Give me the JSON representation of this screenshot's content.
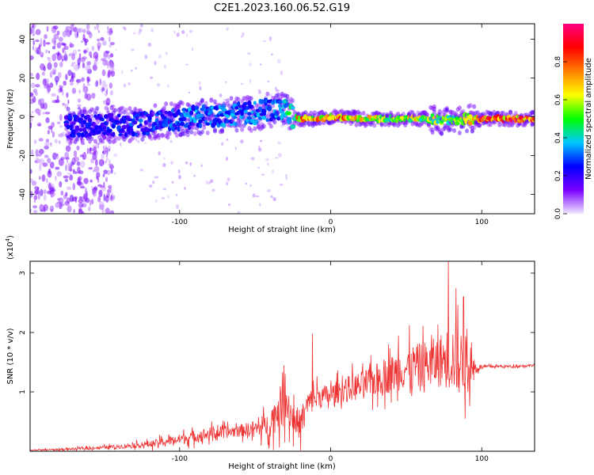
{
  "title": "C2E1.2023.160.06.52.G19",
  "chart_data": [
    {
      "type": "heatmap",
      "xlabel": "Height of straight line (km)",
      "ylabel": "Frequency (Hz)",
      "xlim": [
        -199,
        135
      ],
      "ylim": [
        -50,
        48
      ],
      "x_ticks": [
        -100,
        0,
        100
      ],
      "x_tick_labels": [
        "-100",
        "0",
        "100"
      ],
      "y_ticks": [
        -40,
        -20,
        0,
        20,
        40
      ],
      "y_tick_labels": [
        "-40",
        "-20",
        "0",
        "20",
        "40"
      ],
      "colorbar": {
        "label": "Normalized spectral amplitude",
        "range": [
          0.0,
          1.0
        ],
        "ticks": [
          0.0,
          0.2,
          0.4,
          0.6,
          0.8
        ],
        "tick_labels": [
          "0.0",
          "0.2",
          "0.4",
          "0.6",
          "0.8"
        ],
        "colormap": [
          "#f0e8ff",
          "#7a00ff",
          "#0000ff",
          "#00c8ff",
          "#00ff00",
          "#ffff00",
          "#ff8000",
          "#ff0000",
          "#ff0080"
        ]
      },
      "ridge": {
        "x": [
          -170,
          -150,
          -130,
          -110,
          -90,
          -70,
          -50,
          -40,
          -30,
          -25,
          -20,
          -10,
          0,
          20,
          40,
          60,
          80,
          90,
          100,
          120,
          135
        ],
        "y": [
          -5,
          -4,
          -4,
          -2,
          0,
          1,
          2,
          4,
          3,
          0,
          -1,
          -1,
          0,
          -1,
          -1,
          -1,
          -2,
          -1,
          -1,
          -1,
          -1
        ],
        "intensity": [
          0.25,
          0.25,
          0.3,
          0.3,
          0.35,
          0.35,
          0.35,
          0.35,
          0.4,
          0.5,
          0.85,
          0.8,
          0.85,
          0.75,
          0.65,
          0.65,
          0.55,
          0.65,
          0.9,
          0.9,
          0.85
        ]
      },
      "grid": false,
      "legend": "none"
    },
    {
      "type": "line",
      "xlabel": "Height of straight line (km)",
      "ylabel": "SNR (10 * v/v)",
      "y_scale_label": "(x10",
      "y_scale_exp": "4",
      "y_scale_close": ")",
      "xlim": [
        -199,
        135
      ],
      "ylim": [
        0,
        3.2
      ],
      "x_ticks": [
        -100,
        0,
        100
      ],
      "x_tick_labels": [
        "-100",
        "0",
        "100"
      ],
      "y_ticks": [
        1,
        2,
        3
      ],
      "y_tick_labels": [
        "1",
        "2",
        "3"
      ],
      "color": "#ee3333",
      "series": [
        {
          "x": [
            -199,
            -180,
            -160,
            -140,
            -120,
            -100,
            -90,
            -80,
            -70,
            -60,
            -50,
            -40,
            -35,
            -30,
            -25,
            -20,
            -15,
            -10,
            0,
            10,
            20,
            30,
            40,
            50,
            60,
            70,
            75,
            80,
            85,
            90,
            95,
            100,
            110,
            120,
            135
          ],
          "y": [
            0.02,
            0.03,
            0.05,
            0.08,
            0.12,
            0.2,
            0.25,
            0.3,
            0.32,
            0.35,
            0.38,
            0.45,
            0.7,
            0.85,
            0.55,
            0.45,
            0.8,
            0.9,
            0.95,
            1.05,
            1.1,
            1.2,
            1.3,
            1.4,
            1.45,
            1.5,
            1.55,
            1.6,
            1.5,
            1.45,
            1.4,
            1.42,
            1.43,
            1.43,
            1.45
          ],
          "spread": [
            0.01,
            0.02,
            0.03,
            0.05,
            0.08,
            0.12,
            0.15,
            0.15,
            0.15,
            0.15,
            0.2,
            0.3,
            0.5,
            0.5,
            0.4,
            0.35,
            0.3,
            0.3,
            0.25,
            0.3,
            0.35,
            0.4,
            0.45,
            0.5,
            0.55,
            0.6,
            0.7,
            0.8,
            0.8,
            0.7,
            0.2,
            0.04,
            0.03,
            0.03,
            0.03
          ],
          "peaks": [
            {
              "x": -30,
              "y": 1.3
            },
            {
              "x": -12,
              "y": 1.98
            },
            {
              "x": 45,
              "y": 1.95
            },
            {
              "x": 78,
              "y": 3.2
            },
            {
              "x": 83,
              "y": 2.75
            },
            {
              "x": 88,
              "y": 2.6
            }
          ]
        }
      ],
      "grid": false,
      "legend": "none"
    }
  ]
}
